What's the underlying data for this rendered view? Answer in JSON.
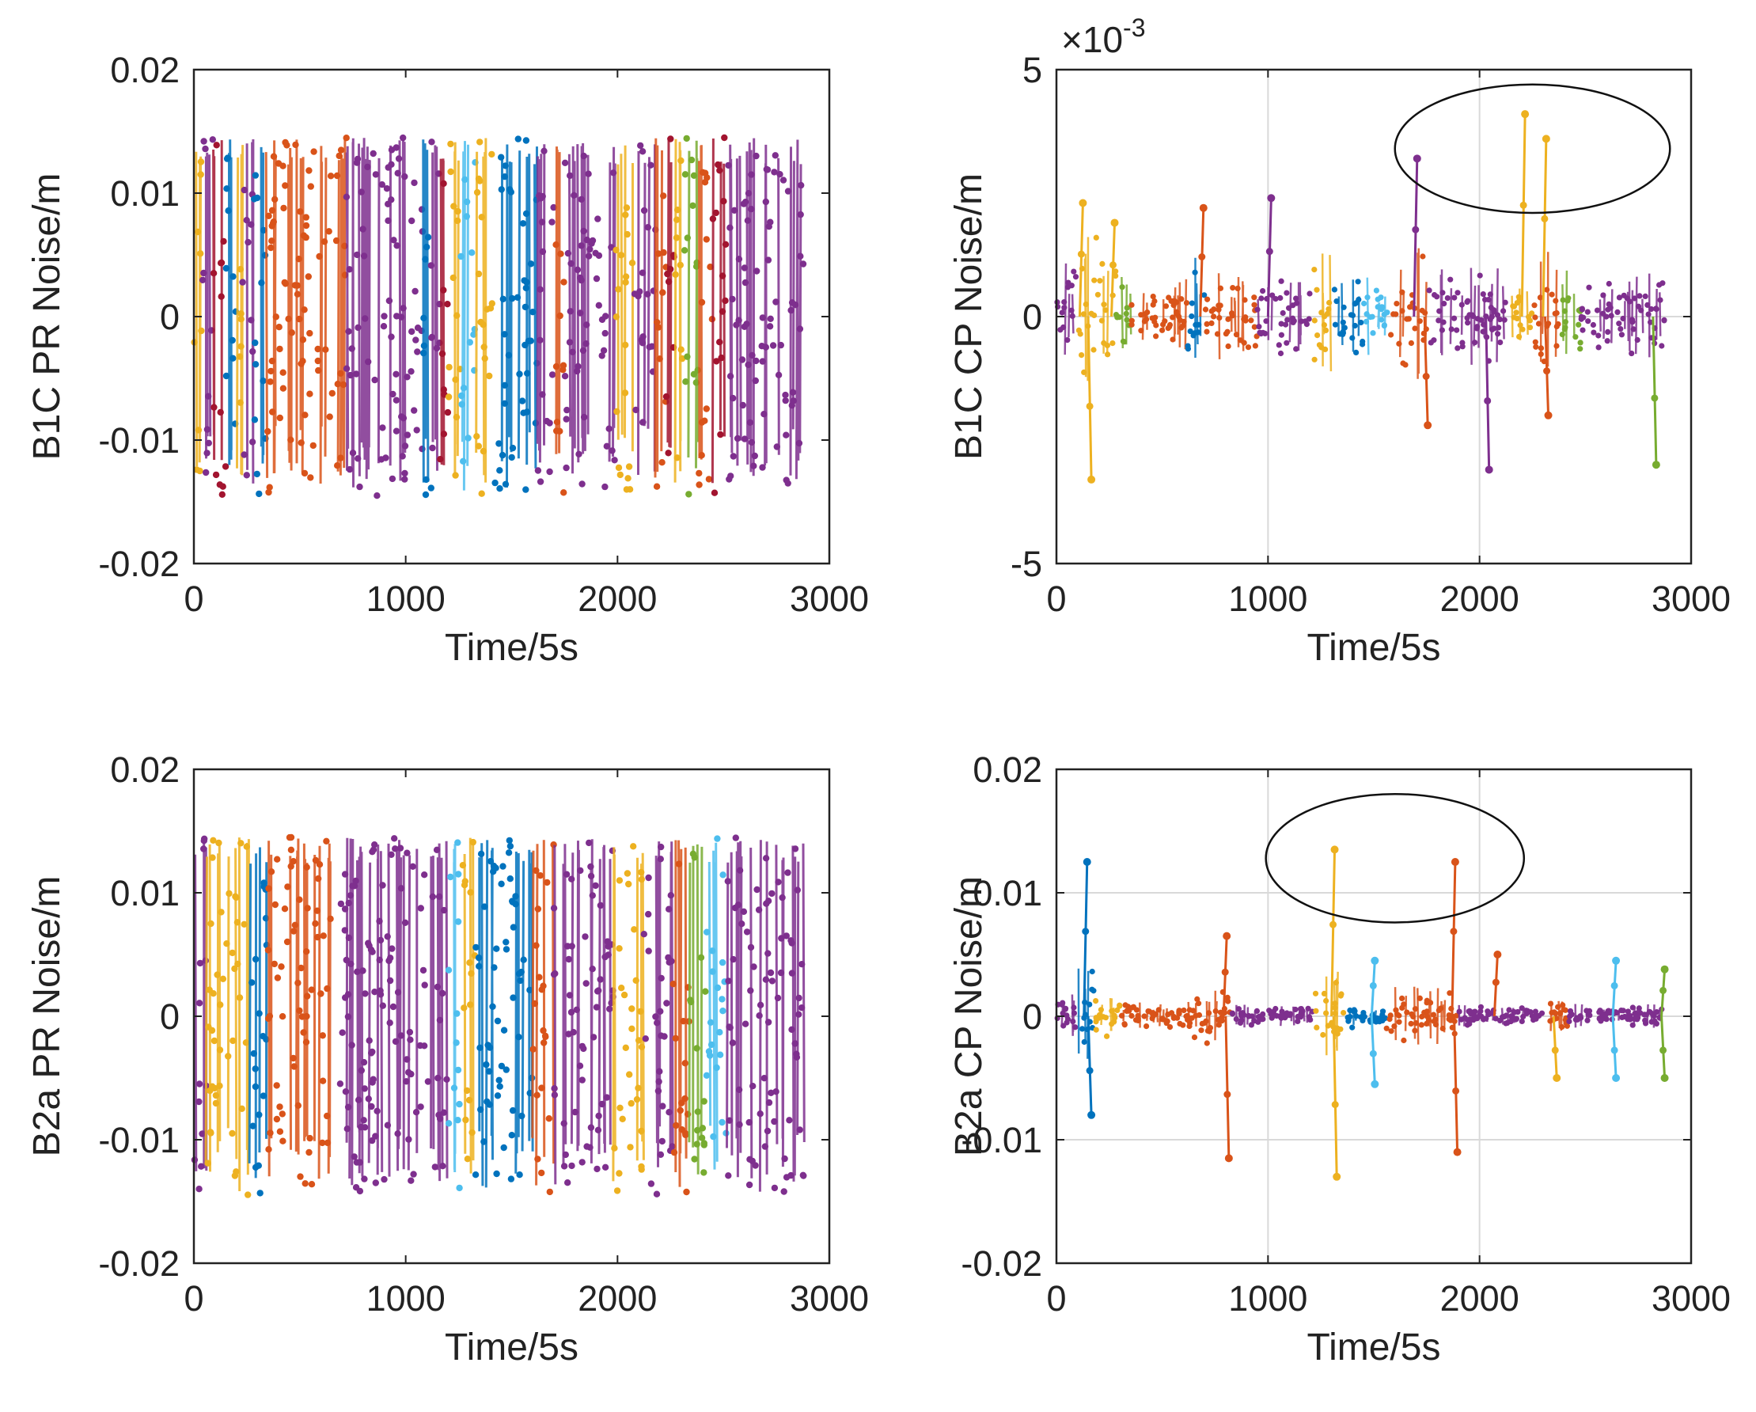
{
  "figure": {
    "background": "#ffffff",
    "series_colors": [
      "#0072BD",
      "#D95319",
      "#EDB120",
      "#7E2F8E",
      "#77AC30",
      "#4DBEEE",
      "#A2142F"
    ]
  },
  "chart_data": [
    {
      "type": "scatter",
      "title": "",
      "xlabel": "Time/5s",
      "ylabel": "B1C PR Noise/m",
      "xlim": [
        0,
        3000
      ],
      "ylim": [
        -0.02,
        0.02
      ],
      "xticks": [
        0,
        1000,
        2000,
        3000
      ],
      "xtick_labels": [
        "0",
        "1000",
        "2000",
        "3000"
      ],
      "yticks": [
        -0.02,
        -0.01,
        0,
        0.01,
        0.02
      ],
      "ytick_labels": [
        "-0.02",
        "-0.01",
        "0",
        "0.01",
        "0.02"
      ],
      "grid": false,
      "exponent_label": null,
      "noise_amplitude": 0.0145,
      "segments": [
        {
          "x": [
            0,
            40
          ],
          "color": "#EDB120"
        },
        {
          "x": [
            40,
            90
          ],
          "color": "#7E2F8E"
        },
        {
          "x": [
            90,
            150
          ],
          "color": "#A2142F"
        },
        {
          "x": [
            150,
            200
          ],
          "color": "#0072BD"
        },
        {
          "x": [
            200,
            230
          ],
          "color": "#EDB120"
        },
        {
          "x": [
            230,
            280
          ],
          "color": "#7E2F8E"
        },
        {
          "x": [
            280,
            340
          ],
          "color": "#0072BD"
        },
        {
          "x": [
            340,
            720
          ],
          "color": "#D95319"
        },
        {
          "x": [
            720,
            1080
          ],
          "color": "#7E2F8E"
        },
        {
          "x": [
            1080,
            1120
          ],
          "color": "#0072BD"
        },
        {
          "x": [
            1120,
            1160
          ],
          "color": "#7E2F8E"
        },
        {
          "x": [
            1160,
            1200
          ],
          "color": "#A2142F"
        },
        {
          "x": [
            1200,
            1260
          ],
          "color": "#EDB120"
        },
        {
          "x": [
            1260,
            1330
          ],
          "color": "#4DBEEE"
        },
        {
          "x": [
            1330,
            1420
          ],
          "color": "#EDB120"
        },
        {
          "x": [
            1420,
            1620
          ],
          "color": "#0072BD"
        },
        {
          "x": [
            1620,
            1700
          ],
          "color": "#7E2F8E"
        },
        {
          "x": [
            1700,
            1750
          ],
          "color": "#D95319"
        },
        {
          "x": [
            1750,
            1990
          ],
          "color": "#7E2F8E"
        },
        {
          "x": [
            1990,
            2080
          ],
          "color": "#EDB120"
        },
        {
          "x": [
            2080,
            2180
          ],
          "color": "#7E2F8E"
        },
        {
          "x": [
            2180,
            2230
          ],
          "color": "#D95319"
        },
        {
          "x": [
            2230,
            2270
          ],
          "color": "#A2142F"
        },
        {
          "x": [
            2270,
            2310
          ],
          "color": "#EDB120"
        },
        {
          "x": [
            2310,
            2380
          ],
          "color": "#77AC30"
        },
        {
          "x": [
            2380,
            2450
          ],
          "color": "#D95319"
        },
        {
          "x": [
            2450,
            2520
          ],
          "color": "#A2142F"
        },
        {
          "x": [
            2520,
            2880
          ],
          "color": "#7E2F8E"
        }
      ],
      "spikes": [],
      "annotation_ellipse": null
    },
    {
      "type": "scatter",
      "title": "",
      "xlabel": "Time/5s",
      "ylabel": "B1C CP Noise/m",
      "xlim": [
        0,
        3000
      ],
      "ylim": [
        -5,
        5
      ],
      "xticks": [
        0,
        1000,
        2000,
        3000
      ],
      "xtick_labels": [
        "0",
        "1000",
        "2000",
        "3000"
      ],
      "yticks": [
        -5,
        0,
        5
      ],
      "ytick_labels": [
        "-5",
        "0",
        "5"
      ],
      "grid": true,
      "exponent_label": {
        "base": "×10",
        "exponent": "-3"
      },
      "noise_amplitude": 1.0,
      "segments": [
        {
          "x": [
            0,
            100
          ],
          "color": "#7E2F8E",
          "amp": 1.3
        },
        {
          "x": [
            100,
            280
          ],
          "color": "#EDB120",
          "amp": 1.9
        },
        {
          "x": [
            280,
            350
          ],
          "color": "#77AC30",
          "amp": 1.0
        },
        {
          "x": [
            350,
            620
          ],
          "color": "#D95319",
          "amp": 0.8
        },
        {
          "x": [
            620,
            700
          ],
          "color": "#0072BD",
          "amp": 1.2
        },
        {
          "x": [
            700,
            950
          ],
          "color": "#D95319",
          "amp": 0.9
        },
        {
          "x": [
            950,
            1200
          ],
          "color": "#7E2F8E",
          "amp": 1.0
        },
        {
          "x": [
            1200,
            1300
          ],
          "color": "#EDB120",
          "amp": 1.3
        },
        {
          "x": [
            1300,
            1450
          ],
          "color": "#0072BD",
          "amp": 0.9
        },
        {
          "x": [
            1450,
            1580
          ],
          "color": "#4DBEEE",
          "amp": 0.8
        },
        {
          "x": [
            1580,
            1750
          ],
          "color": "#D95319",
          "amp": 1.4
        },
        {
          "x": [
            1750,
            2150
          ],
          "color": "#7E2F8E",
          "amp": 1.0
        },
        {
          "x": [
            2150,
            2250
          ],
          "color": "#EDB120",
          "amp": 0.7
        },
        {
          "x": [
            2250,
            2380
          ],
          "color": "#D95319",
          "amp": 1.4
        },
        {
          "x": [
            2380,
            2480
          ],
          "color": "#77AC30",
          "amp": 1.0
        },
        {
          "x": [
            2480,
            2880
          ],
          "color": "#7E2F8E",
          "amp": 0.9
        }
      ],
      "spikes": [
        {
          "x": 110,
          "y": 2.3,
          "color": "#EDB120"
        },
        {
          "x": 150,
          "y": -3.3,
          "color": "#EDB120"
        },
        {
          "x": 260,
          "y": 1.9,
          "color": "#EDB120"
        },
        {
          "x": 680,
          "y": 2.2,
          "color": "#D95319"
        },
        {
          "x": 1000,
          "y": 2.4,
          "color": "#7E2F8E"
        },
        {
          "x": 1690,
          "y": 3.2,
          "color": "#7E2F8E"
        },
        {
          "x": 1740,
          "y": -2.2,
          "color": "#D95319"
        },
        {
          "x": 2030,
          "y": -3.1,
          "color": "#7E2F8E"
        },
        {
          "x": 2200,
          "y": 4.1,
          "color": "#EDB120"
        },
        {
          "x": 2300,
          "y": 3.6,
          "color": "#EDB120"
        },
        {
          "x": 2310,
          "y": -2.0,
          "color": "#D95319"
        },
        {
          "x": 2820,
          "y": -3.0,
          "color": "#77AC30"
        }
      ],
      "annotation_ellipse": {
        "cx": 2250,
        "cy": 3.4,
        "rx": 650,
        "ry": 1.3
      }
    },
    {
      "type": "scatter",
      "title": "",
      "xlabel": "Time/5s",
      "ylabel": "B2a PR Noise/m",
      "xlim": [
        0,
        3000
      ],
      "ylim": [
        -0.02,
        0.02
      ],
      "xticks": [
        0,
        1000,
        2000,
        3000
      ],
      "xtick_labels": [
        "0",
        "1000",
        "2000",
        "3000"
      ],
      "yticks": [
        -0.02,
        -0.01,
        0,
        0.01,
        0.02
      ],
      "ytick_labels": [
        "-0.02",
        "-0.01",
        "0",
        "0.01",
        "0.02"
      ],
      "grid": false,
      "exponent_label": null,
      "noise_amplitude": 0.0145,
      "segments": [
        {
          "x": [
            0,
            60
          ],
          "color": "#7E2F8E"
        },
        {
          "x": [
            60,
            260
          ],
          "color": "#EDB120"
        },
        {
          "x": [
            260,
            350
          ],
          "color": "#0072BD"
        },
        {
          "x": [
            350,
            660
          ],
          "color": "#D95319"
        },
        {
          "x": [
            660,
            1200
          ],
          "color": "#7E2F8E"
        },
        {
          "x": [
            1200,
            1260
          ],
          "color": "#4DBEEE"
        },
        {
          "x": [
            1260,
            1330
          ],
          "color": "#EDB120"
        },
        {
          "x": [
            1330,
            1600
          ],
          "color": "#0072BD"
        },
        {
          "x": [
            1600,
            1700
          ],
          "color": "#D95319"
        },
        {
          "x": [
            1700,
            1980
          ],
          "color": "#7E2F8E"
        },
        {
          "x": [
            1980,
            2120
          ],
          "color": "#EDB120"
        },
        {
          "x": [
            2120,
            2260
          ],
          "color": "#7E2F8E"
        },
        {
          "x": [
            2260,
            2340
          ],
          "color": "#D95319"
        },
        {
          "x": [
            2340,
            2420
          ],
          "color": "#77AC30"
        },
        {
          "x": [
            2420,
            2520
          ],
          "color": "#4DBEEE"
        },
        {
          "x": [
            2520,
            2880
          ],
          "color": "#7E2F8E"
        }
      ],
      "spikes": [],
      "annotation_ellipse": null
    },
    {
      "type": "scatter",
      "title": "",
      "xlabel": "Time/5s",
      "ylabel": "B2a CP Noise/m",
      "xlim": [
        0,
        3000
      ],
      "ylim": [
        -0.02,
        0.02
      ],
      "xticks": [
        0,
        1000,
        2000,
        3000
      ],
      "xtick_labels": [
        "0",
        "1000",
        "2000",
        "3000"
      ],
      "yticks": [
        -0.02,
        -0.01,
        0,
        0.01,
        0.02
      ],
      "ytick_labels": [
        "-0.02",
        "-0.01",
        "0",
        "0.01",
        "0.02"
      ],
      "grid": true,
      "exponent_label": null,
      "noise_amplitude": 0.001,
      "segments": [
        {
          "x": [
            0,
            100
          ],
          "color": "#7E2F8E",
          "amp": 0.002
        },
        {
          "x": [
            100,
            180
          ],
          "color": "#0072BD",
          "amp": 0.004
        },
        {
          "x": [
            180,
            300
          ],
          "color": "#EDB120",
          "amp": 0.002
        },
        {
          "x": [
            300,
            650
          ],
          "color": "#D95319",
          "amp": 0.0012
        },
        {
          "x": [
            650,
            830
          ],
          "color": "#D95319",
          "amp": 0.003
        },
        {
          "x": [
            830,
            1220
          ],
          "color": "#7E2F8E",
          "amp": 0.001
        },
        {
          "x": [
            1220,
            1360
          ],
          "color": "#EDB120",
          "amp": 0.004
        },
        {
          "x": [
            1360,
            1560
          ],
          "color": "#0072BD",
          "amp": 0.001
        },
        {
          "x": [
            1560,
            1900
          ],
          "color": "#D95319",
          "amp": 0.0025
        },
        {
          "x": [
            1900,
            2300
          ],
          "color": "#7E2F8E",
          "amp": 0.001
        },
        {
          "x": [
            2300,
            2420
          ],
          "color": "#D95319",
          "amp": 0.0014
        },
        {
          "x": [
            2420,
            2880
          ],
          "color": "#7E2F8E",
          "amp": 0.001
        }
      ],
      "spikes": [
        {
          "x": 130,
          "y": 0.0125,
          "color": "#0072BD"
        },
        {
          "x": 150,
          "y": -0.008,
          "color": "#0072BD"
        },
        {
          "x": 790,
          "y": 0.0065,
          "color": "#D95319"
        },
        {
          "x": 800,
          "y": -0.0115,
          "color": "#D95319"
        },
        {
          "x": 1300,
          "y": 0.0135,
          "color": "#EDB120"
        },
        {
          "x": 1310,
          "y": -0.013,
          "color": "#EDB120"
        },
        {
          "x": 1490,
          "y": 0.0045,
          "color": "#4DBEEE"
        },
        {
          "x": 1490,
          "y": -0.0055,
          "color": "#4DBEEE"
        },
        {
          "x": 1870,
          "y": 0.0125,
          "color": "#D95319"
        },
        {
          "x": 1880,
          "y": -0.011,
          "color": "#D95319"
        },
        {
          "x": 2070,
          "y": 0.005,
          "color": "#D95319"
        },
        {
          "x": 2350,
          "y": -0.005,
          "color": "#EDB120"
        },
        {
          "x": 2630,
          "y": 0.0045,
          "color": "#4DBEEE"
        },
        {
          "x": 2630,
          "y": -0.005,
          "color": "#4DBEEE"
        },
        {
          "x": 2860,
          "y": 0.0038,
          "color": "#77AC30"
        },
        {
          "x": 2860,
          "y": -0.005,
          "color": "#77AC30"
        }
      ],
      "annotation_ellipse": {
        "cx": 1600,
        "cy": 0.0128,
        "rx": 610,
        "ry": 0.0052
      }
    }
  ]
}
